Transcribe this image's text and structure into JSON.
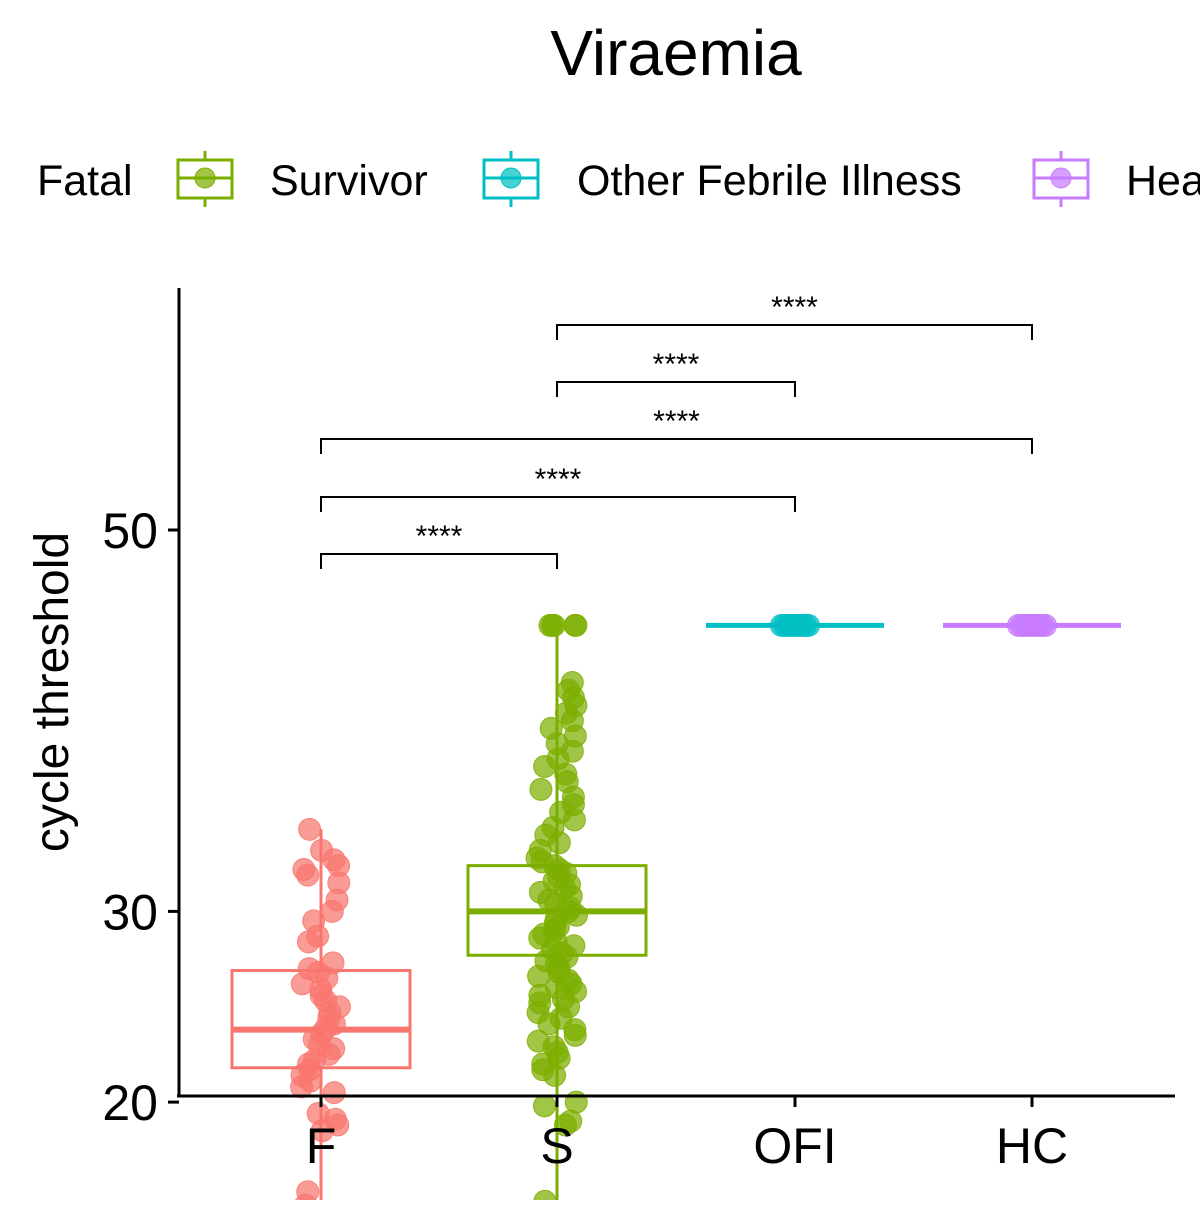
{
  "chart_data": {
    "type": "box",
    "title": "Viraemia",
    "ylabel": "cycle threshold",
    "xlabel": "",
    "categories": [
      "F",
      "S",
      "OFI",
      "HC"
    ],
    "yticks": [
      20,
      30,
      50
    ],
    "ylim": [
      13.1,
      59.7
    ],
    "legend": {
      "placement": "top",
      "title": "",
      "entries": [
        "Fatal",
        "Survivor",
        "Other Febrile Illness",
        "Hea"
      ]
    },
    "colors": {
      "F": "#F8766D",
      "S": "#7CAE00",
      "OFI": "#00BFC4",
      "HC": "#C77CFF"
    },
    "boxes": [
      {
        "category": "F",
        "lower_whisker": 14.6,
        "q1": 21.8,
        "median": 23.8,
        "q3": 26.9,
        "upper_whisker": 34.3
      },
      {
        "category": "S",
        "lower_whisker": 14.8,
        "q1": 27.7,
        "median": 30.0,
        "q3": 32.4,
        "upper_whisker": 45.0
      },
      {
        "category": "OFI",
        "lower_whisker": 45.0,
        "q1": 45.0,
        "median": 45.0,
        "q3": 45.0,
        "upper_whisker": 45.0
      },
      {
        "category": "HC",
        "lower_whisker": 45.0,
        "q1": 45.0,
        "median": 45.0,
        "q3": 45.0,
        "upper_whisker": 45.0
      }
    ],
    "points": [
      {
        "category": "F",
        "values": [
          34.3,
          33.2,
          32.7,
          32.4,
          32.2,
          31.9,
          31.5,
          30.6,
          30.0,
          29.5,
          28.7,
          28.4,
          27.3,
          27.0,
          26.8,
          26.5,
          26.2,
          25.9,
          25.6,
          25.3,
          25.0,
          24.7,
          24.4,
          24.1,
          23.9,
          23.6,
          23.3,
          23.0,
          22.8,
          22.5,
          22.2,
          22.0,
          21.7,
          21.4,
          21.1,
          20.8,
          20.5,
          19.4,
          19.1,
          18.8,
          18.5,
          15.3,
          14.6,
          13.9
        ]
      },
      {
        "category": "S",
        "values": [
          45.0,
          45.0,
          45.0,
          45.0,
          45.0,
          42.0,
          41.6,
          41.2,
          40.8,
          40.4,
          40.0,
          39.6,
          39.2,
          38.8,
          38.4,
          38.0,
          37.6,
          37.2,
          36.8,
          36.4,
          36.0,
          35.6,
          35.2,
          34.8,
          34.4,
          34.0,
          33.6,
          33.2,
          32.8,
          32.6,
          32.4,
          32.2,
          32.0,
          31.8,
          31.6,
          31.4,
          31.2,
          31.0,
          30.8,
          30.6,
          30.4,
          30.2,
          30.0,
          29.8,
          29.6,
          29.4,
          29.2,
          29.0,
          28.8,
          28.6,
          28.4,
          28.2,
          28.0,
          27.8,
          27.6,
          27.4,
          27.2,
          27.0,
          26.8,
          26.6,
          26.4,
          26.2,
          26.0,
          25.8,
          25.6,
          25.4,
          25.2,
          25.0,
          24.7,
          24.4,
          24.1,
          23.8,
          23.5,
          23.2,
          22.9,
          22.6,
          22.3,
          22.0,
          21.7,
          21.4,
          20.0,
          19.8,
          19.0,
          18.8,
          14.8
        ]
      },
      {
        "category": "OFI",
        "values": [
          45.0,
          45.0,
          45.0,
          45.0,
          45.0,
          45.0,
          45.0,
          45.0,
          45.0,
          45.0
        ]
      },
      {
        "category": "HC",
        "values": [
          45.0,
          45.0,
          45.0,
          45.0,
          45.0,
          45.0,
          45.0,
          45.0,
          45.0,
          45.0
        ]
      }
    ],
    "comparisons": [
      {
        "group1": "F",
        "group2": "S",
        "label": "****"
      },
      {
        "group1": "F",
        "group2": "OFI",
        "label": "****"
      },
      {
        "group1": "F",
        "group2": "HC",
        "label": "****"
      },
      {
        "group1": "S",
        "group2": "OFI",
        "label": "****"
      },
      {
        "group1": "S",
        "group2": "HC",
        "label": "****"
      }
    ]
  }
}
